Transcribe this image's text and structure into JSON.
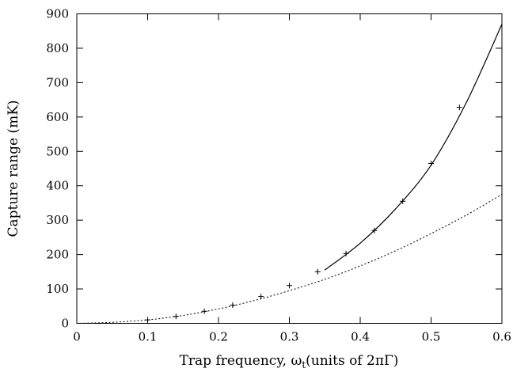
{
  "chart_data": {
    "type": "scatter",
    "xlabel": "Trap frequency, ω",
    "xlabel_sub": "t",
    "xlabel_tail": "(units of 2πΓ)",
    "ylabel": "Capture range (mK)",
    "xlim": [
      0,
      0.6
    ],
    "ylim": [
      0,
      900
    ],
    "xticks": [
      0,
      0.1,
      0.2,
      0.3,
      0.4,
      0.5,
      0.6
    ],
    "xtick_labels": [
      "0",
      "0.1",
      "0.2",
      "0.3",
      "0.4",
      "0.5",
      "0.6"
    ],
    "yticks": [
      0,
      100,
      200,
      300,
      400,
      500,
      600,
      700,
      800,
      900
    ],
    "ytick_labels": [
      "0",
      "100",
      "200",
      "300",
      "400",
      "500",
      "600",
      "700",
      "800",
      "900"
    ],
    "grid": false,
    "series": [
      {
        "kind": "points",
        "x": [
          0.1,
          0.14,
          0.18,
          0.22,
          0.26,
          0.3,
          0.34,
          0.38,
          0.42,
          0.46,
          0.5,
          0.54
        ],
        "y": [
          10,
          20,
          35,
          53,
          78,
          110,
          150,
          203,
          270,
          355,
          465,
          628
        ]
      },
      {
        "kind": "solid-curve",
        "x": [
          0.35,
          0.4,
          0.45,
          0.5,
          0.55,
          0.6
        ],
        "y": [
          155,
          233,
          333,
          460,
          643,
          870
        ]
      },
      {
        "kind": "dotted-curve",
        "x": [
          0.0,
          0.05,
          0.1,
          0.15,
          0.2,
          0.25,
          0.3,
          0.35,
          0.4,
          0.45,
          0.5,
          0.55,
          0.6
        ],
        "y": [
          0,
          3,
          10,
          23,
          42,
          66,
          95,
          128,
          167,
          211,
          261,
          315,
          375
        ]
      }
    ]
  }
}
